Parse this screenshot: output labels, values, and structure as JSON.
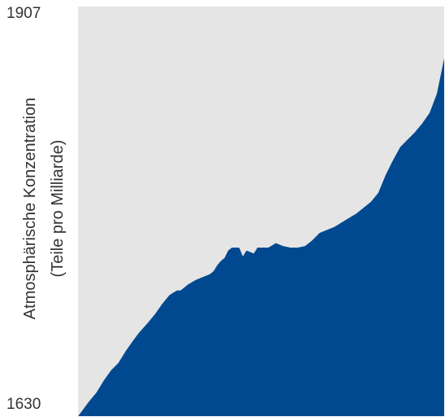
{
  "chart_data": {
    "type": "area",
    "ylabel_line1": "Atmosphärische Konzentration",
    "ylabel_line2": "(Teile pro Milliarde)",
    "ymin_label": "1630",
    "ymax_label": "1907",
    "ylim": [
      1630,
      1907
    ],
    "xlim": [
      0,
      100
    ],
    "grid": false,
    "legend": "none",
    "colors": {
      "fill": "#004990",
      "background": "#e5e5e5"
    },
    "series": [
      {
        "x": [
          0,
          3,
          5,
          7,
          9,
          11,
          13,
          15,
          16.5,
          19,
          21,
          23,
          25,
          27,
          28,
          30,
          32,
          34,
          36,
          37,
          38,
          39,
          40,
          41,
          42,
          43,
          44,
          45,
          46,
          48,
          49,
          50,
          52,
          54,
          56,
          58,
          60,
          62,
          64,
          66,
          68,
          70,
          72,
          74,
          76,
          78,
          80,
          82,
          84,
          86,
          88,
          90,
          92,
          94,
          96,
          98,
          99,
          100
        ],
        "y": [
          1630,
          1640,
          1646,
          1654,
          1661,
          1666,
          1674,
          1681,
          1686,
          1693,
          1699,
          1706,
          1712,
          1715,
          1715,
          1719,
          1722,
          1724,
          1726,
          1728,
          1732,
          1735,
          1737,
          1742,
          1744,
          1744,
          1744,
          1738,
          1742,
          1740,
          1744,
          1744,
          1744,
          1747,
          1745,
          1744,
          1744,
          1745,
          1749,
          1754,
          1756,
          1758,
          1761,
          1764,
          1767,
          1771,
          1775,
          1781,
          1793,
          1803,
          1812,
          1817,
          1822,
          1828,
          1835,
          1848,
          1860,
          1872
        ]
      }
    ]
  }
}
